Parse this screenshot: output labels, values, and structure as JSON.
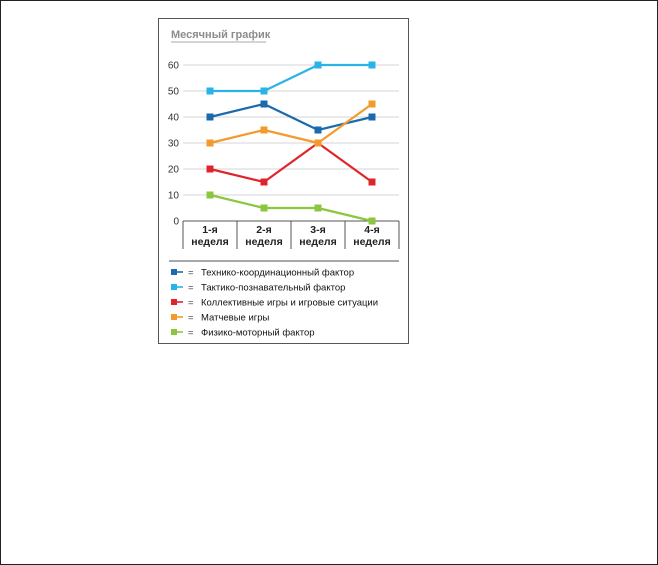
{
  "chart_data": {
    "type": "line",
    "title": "Месячный график",
    "categories": [
      [
        "1-я",
        "неделя"
      ],
      [
        "2-я",
        "неделя"
      ],
      [
        "3-я",
        "неделя"
      ],
      [
        "4-я",
        "неделя"
      ]
    ],
    "yticks": [
      0,
      10,
      20,
      30,
      40,
      50,
      60
    ],
    "ylim": [
      0,
      60
    ],
    "grid": true,
    "legend_position": "bottom",
    "series": [
      {
        "name": "Технико-координационный фактор",
        "color": "#1a6aad",
        "values": [
          40,
          45,
          35,
          40
        ]
      },
      {
        "name": "Тактико-познавательный фактор",
        "color": "#2ab3e6",
        "values": [
          50,
          50,
          60,
          60
        ]
      },
      {
        "name": "Коллективные игры и игровые ситуации",
        "color": "#e0242c",
        "values": [
          20,
          15,
          30,
          15
        ]
      },
      {
        "name": "Матчевые игры",
        "color": "#f39a2c",
        "values": [
          30,
          35,
          30,
          45
        ]
      },
      {
        "name": "Физико-моторный фактор",
        "color": "#8cc63f",
        "values": [
          10,
          5,
          5,
          0
        ]
      }
    ],
    "legend_separator": "="
  }
}
